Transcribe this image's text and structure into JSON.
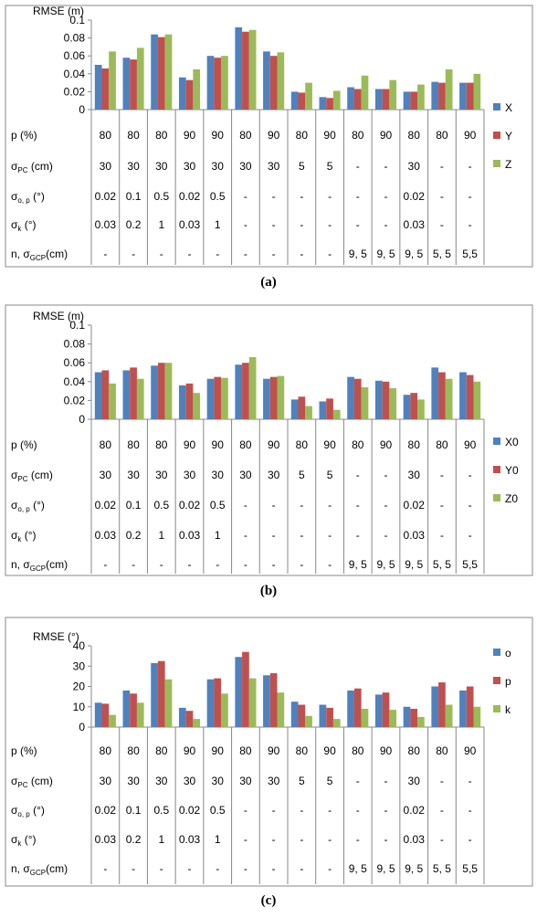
{
  "panel_labels": [
    "(a)",
    "(b)",
    "(c)"
  ],
  "table": {
    "row_labels": {
      "p": "p (%)",
      "spc_main": "σ",
      "spc_sub": "PC",
      "spc_unit": " (cm)",
      "sop_main": "σ",
      "sop_sub": "o, p",
      "sop_unit": "  (°)",
      "sk_main": "σ",
      "sk_sub": "k",
      "sk_unit": "  (°)",
      "n_main": "n, σ",
      "n_sub": "GCP",
      "n_unit": "(cm)"
    },
    "rows": [
      [
        "80",
        "80",
        "80",
        "90",
        "90",
        "80",
        "90",
        "80",
        "90",
        "80",
        "90",
        "80",
        "80",
        "90"
      ],
      [
        "30",
        "30",
        "30",
        "30",
        "30",
        "30",
        "30",
        "5",
        "5",
        "-",
        "-",
        "30",
        "-",
        "-"
      ],
      [
        "0.02",
        "0.1",
        "0.5",
        "0.02",
        "0.5",
        "-",
        "-",
        "-",
        "-",
        "-",
        "-",
        "0.02",
        "-",
        "-"
      ],
      [
        "0.03",
        "0.2",
        "1",
        "0.03",
        "1",
        "-",
        "-",
        "-",
        "-",
        "-",
        "-",
        "0.03",
        "-",
        "-"
      ],
      [
        "-",
        "-",
        "-",
        "-",
        "-",
        "-",
        "-",
        "-",
        "-",
        "9, 5",
        "9, 5",
        "9, 5",
        "5, 5",
        "5,5"
      ]
    ]
  },
  "chart_data": [
    {
      "type": "bar",
      "ylabel": "RMSE (m)",
      "ylim": [
        0,
        0.1
      ],
      "yticks": [
        "0",
        "0.02",
        "0.04",
        "0.06",
        "0.08",
        "0.1"
      ],
      "legend_position": "right",
      "colors": [
        "#4f81bd",
        "#c0504d",
        "#9bbb59"
      ],
      "series": [
        {
          "name": "X",
          "values": [
            0.05,
            0.058,
            0.084,
            0.036,
            0.06,
            0.092,
            0.065,
            0.02,
            0.014,
            0.025,
            0.023,
            0.02,
            0.031,
            0.03
          ]
        },
        {
          "name": "Y",
          "values": [
            0.046,
            0.056,
            0.081,
            0.033,
            0.058,
            0.087,
            0.06,
            0.019,
            0.013,
            0.023,
            0.023,
            0.02,
            0.03,
            0.03
          ]
        },
        {
          "name": "Z",
          "values": [
            0.065,
            0.069,
            0.084,
            0.045,
            0.06,
            0.089,
            0.064,
            0.03,
            0.021,
            0.038,
            0.033,
            0.028,
            0.045,
            0.04
          ]
        }
      ]
    },
    {
      "type": "bar",
      "ylabel": "RMSE (m)",
      "ylim": [
        0,
        0.1
      ],
      "yticks": [
        "0",
        "0.02",
        "0.04",
        "0.06",
        "0.08",
        "0.1"
      ],
      "legend_position": "right",
      "colors": [
        "#4f81bd",
        "#c0504d",
        "#9bbb59"
      ],
      "series": [
        {
          "name": "X0",
          "values": [
            0.05,
            0.052,
            0.057,
            0.036,
            0.043,
            0.058,
            0.043,
            0.021,
            0.019,
            0.045,
            0.041,
            0.026,
            0.055,
            0.05
          ]
        },
        {
          "name": "Y0",
          "values": [
            0.052,
            0.055,
            0.06,
            0.038,
            0.045,
            0.06,
            0.045,
            0.024,
            0.022,
            0.043,
            0.04,
            0.028,
            0.05,
            0.047
          ]
        },
        {
          "name": "Z0",
          "values": [
            0.038,
            0.043,
            0.06,
            0.028,
            0.044,
            0.066,
            0.046,
            0.014,
            0.01,
            0.034,
            0.033,
            0.021,
            0.043,
            0.04
          ]
        }
      ]
    },
    {
      "type": "bar",
      "ylabel": "RMSE (°)",
      "ylim": [
        0,
        40
      ],
      "yticks": [
        "0",
        "10",
        "20",
        "30",
        "40"
      ],
      "legend_position": "right",
      "colors": [
        "#4f81bd",
        "#c0504d",
        "#9bbb59"
      ],
      "series": [
        {
          "name": "o",
          "values": [
            12,
            18,
            31.5,
            9.5,
            23.5,
            34.5,
            25.5,
            12.5,
            11,
            18,
            16,
            10,
            20,
            18
          ]
        },
        {
          "name": "p",
          "values": [
            11.5,
            16.5,
            32.5,
            8,
            24,
            37,
            26.5,
            11,
            9.5,
            19,
            17,
            9,
            22,
            20
          ]
        },
        {
          "name": "k",
          "values": [
            6,
            12,
            23.5,
            4,
            16.5,
            24,
            17,
            5.5,
            4,
            9,
            8.5,
            5,
            11,
            10
          ]
        }
      ]
    }
  ]
}
